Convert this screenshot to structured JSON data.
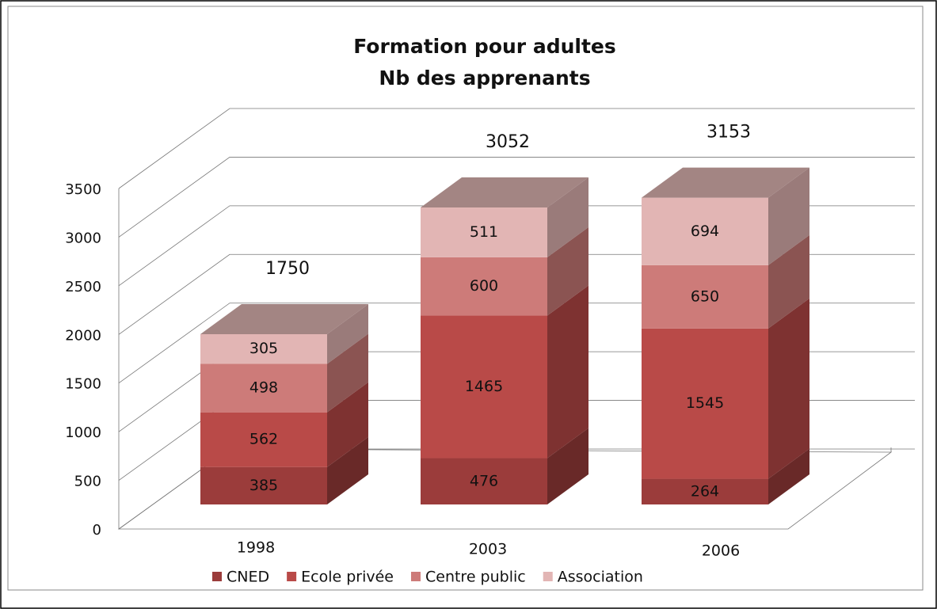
{
  "chart_data": {
    "type": "bar3d_stacked",
    "title": [
      "Formation pour adultes",
      "Nb des apprenants"
    ],
    "categories": [
      "1998",
      "2003",
      "2006"
    ],
    "series": [
      {
        "name": "CNED",
        "color": "#9b3c3b",
        "values": [
          385,
          476,
          264
        ]
      },
      {
        "name": "Ecole privée",
        "color": "#b94a48",
        "values": [
          562,
          1465,
          1545
        ]
      },
      {
        "name": "Centre public",
        "color": "#cd7b79",
        "values": [
          498,
          600,
          650
        ]
      },
      {
        "name": "Association",
        "color": "#e2b5b4",
        "values": [
          305,
          511,
          694
        ]
      }
    ],
    "totals": [
      1750,
      3052,
      3153
    ],
    "ylim": [
      0,
      3500
    ],
    "yticks": [
      0,
      500,
      1000,
      1500,
      2000,
      2500,
      3000,
      3500
    ],
    "grid": true,
    "legend": "bottom"
  }
}
